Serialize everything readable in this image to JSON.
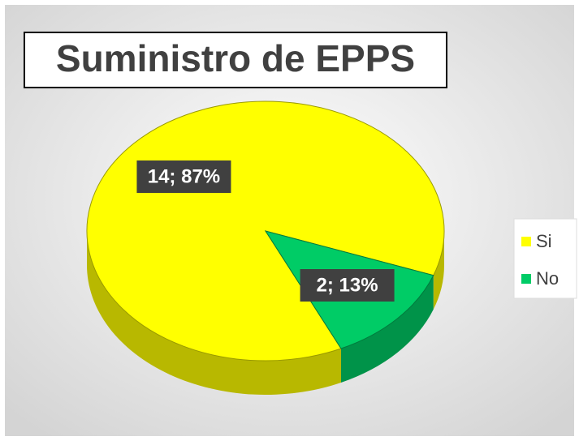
{
  "chart_data": {
    "type": "pie",
    "title": "Suministro de EPPS",
    "categories": [
      "Si",
      "No"
    ],
    "values": [
      14,
      2
    ],
    "value_labels": [
      "14; 87%",
      "2; 13%"
    ],
    "colors": [
      "#ffff00",
      "#00cc66"
    ],
    "legend": "right"
  }
}
